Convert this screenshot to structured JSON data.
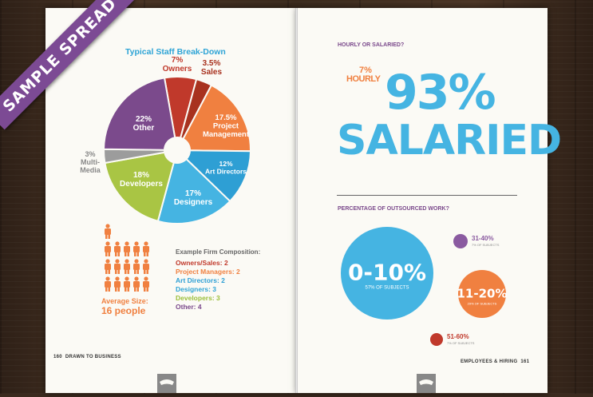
{
  "banner": "SAMPLE SPREAD",
  "left_page": {
    "title": "Typical Staff Break-Down",
    "average": {
      "label": "Average Size:",
      "value": "16 people"
    },
    "composition_title": "Example Firm Composition:",
    "composition": [
      {
        "text": "Owners/Sales: 2",
        "color": "#c0392b"
      },
      {
        "text": "Project Managers: 2",
        "color": "#f08040"
      },
      {
        "text": "Art Directors: 2",
        "color": "#2e9fd4"
      },
      {
        "text": "Designers: 3",
        "color": "#2ea4d6"
      },
      {
        "text": "Developers: 3",
        "color": "#9bbf3a"
      },
      {
        "text": "Other: 4",
        "color": "#7b4a8c"
      }
    ],
    "footer_num": "160",
    "footer_text": "DRAWN TO BUSINESS"
  },
  "right_page": {
    "q1": "HOURLY OR SALARIED?",
    "hourly_pct": "7%",
    "hourly_label": "HOURLY",
    "salaried_pct": "93%",
    "salaried_label": "SALARIED",
    "q2": "PERCENTAGE OF OUTSOURCED WORK?",
    "footer_text": "EMPLOYEES & HIRING",
    "footer_num": "161"
  },
  "chart_data": [
    {
      "type": "pie",
      "title": "Typical Staff Break-Down",
      "slices": [
        {
          "label": "Owners",
          "pct_text": "7%",
          "value": 7,
          "color": "#c0392b"
        },
        {
          "label": "Sales",
          "pct_text": "3.5%",
          "value": 3.5,
          "color": "#a8321f"
        },
        {
          "label": "Project Management",
          "pct_text": "17.5%",
          "value": 17.5,
          "color": "#f08040"
        },
        {
          "label": "Art Directors",
          "pct_text": "12%",
          "value": 12,
          "color": "#2e9fd4"
        },
        {
          "label": "Designers",
          "pct_text": "17%",
          "value": 17,
          "color": "#45b4e2"
        },
        {
          "label": "Developers",
          "pct_text": "18%",
          "value": 18,
          "color": "#a9c544"
        },
        {
          "label": "Multi-Media",
          "pct_text": "3%",
          "value": 3,
          "color": "#9c9c9c"
        },
        {
          "label": "Other",
          "pct_text": "22%",
          "value": 22,
          "color": "#7b4a8c"
        }
      ]
    },
    {
      "type": "bubble",
      "title": "PERCENTAGE OF OUTSOURCED WORK?",
      "bubbles": [
        {
          "label": "0-10%",
          "sub": "57% OF SUBJECTS",
          "value": 57,
          "color": "#45b4e2"
        },
        {
          "label": "11-20%",
          "sub": "29% OF SUBJECTS",
          "value": 29,
          "color": "#f08040"
        },
        {
          "label": "31-40%",
          "sub": "7% OF SUBJECTS",
          "value": 7,
          "color": "#8a5aa0"
        },
        {
          "label": "51-60%",
          "sub": "7% OF SUBJECTS",
          "value": 7,
          "color": "#c0392b"
        }
      ]
    }
  ]
}
